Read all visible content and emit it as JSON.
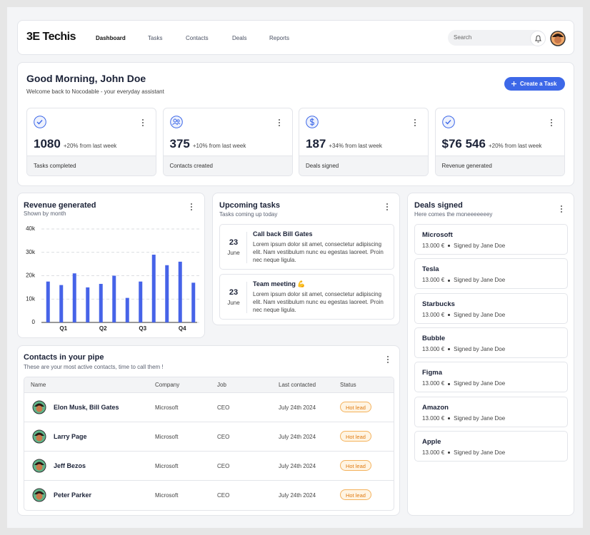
{
  "header": {
    "logo": "3E Techis",
    "nav": [
      "Dashboard",
      "Tasks",
      "Contacts",
      "Deals",
      "Reports"
    ],
    "search": "Search"
  },
  "greeting": {
    "title": "Good Morning, John Doe",
    "subtitle": "Welcome back to Nocodable - your everyday assistant",
    "button": "Create a Task"
  },
  "stats": [
    {
      "value": "1080",
      "change": "+20% from last week",
      "label": "Tasks completed"
    },
    {
      "value": "375",
      "change": "+10% from last week",
      "label": "Contacts created"
    },
    {
      "value": "187",
      "change": "+34% from last week",
      "label": "Deals signed"
    },
    {
      "value": "$76 546",
      "change": "+20% from last week",
      "label": "Revenue generated"
    }
  ],
  "chart_data": {
    "type": "bar",
    "title": "Revenue generated",
    "subtitle": "Shown by month",
    "categories": [
      null,
      "Q1",
      null,
      null,
      "Q2",
      null,
      null,
      "Q3",
      null,
      null,
      "Q4",
      null
    ],
    "values": [
      17500,
      16000,
      21000,
      15000,
      16500,
      20000,
      10500,
      17500,
      29000,
      24500,
      26000,
      17000
    ],
    "color": "#4663e8",
    "ylim": [
      0,
      40000
    ],
    "yticks": [
      {
        "value": 0,
        "label": "0"
      },
      {
        "value": 10000,
        "label": "10k"
      },
      {
        "value": 20000,
        "label": "20k"
      },
      {
        "value": 30000,
        "label": "30k"
      },
      {
        "value": 40000,
        "label": "40k"
      }
    ],
    "grid": true
  },
  "tasks": {
    "title": "Upcoming tasks",
    "subtitle": "Tasks coming up today",
    "items": [
      {
        "day": "23",
        "month": "June",
        "title": "Call back Bill Gates",
        "description": "Lorem ipsum dolor sit amet, consectetur adipiscing elit. Nam vestibulum nunc eu egestas laoreet. Proin nec neque ligula."
      },
      {
        "day": "23",
        "month": "June",
        "title": "Team meeting 💪",
        "description": "Lorem ipsum dolor sit amet, consectetur adipiscing elit. Nam vestibulum nunc eu egestas laoreet. Proin nec neque ligula."
      }
    ]
  },
  "deals": {
    "title": "Deals signed",
    "subtitle": "Here comes the moneeeeeeey",
    "items": [
      {
        "company": "Microsoft",
        "amount": "13.000 €",
        "signed": "Signed by Jane Doe"
      },
      {
        "company": "Tesla",
        "amount": "13.000 €",
        "signed": "Signed by Jane Doe"
      },
      {
        "company": "Starbucks",
        "amount": "13.000 €",
        "signed": "Signed by Jane Doe"
      },
      {
        "company": "Bubble",
        "amount": "13.000 €",
        "signed": "Signed by Jane Doe"
      },
      {
        "company": "Figma",
        "amount": "13.000 €",
        "signed": "Signed by Jane Doe"
      },
      {
        "company": "Amazon",
        "amount": "13.000 €",
        "signed": "Signed by Jane Doe"
      },
      {
        "company": "Apple",
        "amount": "13.000 €",
        "signed": "Signed by Jane Doe"
      }
    ]
  },
  "contacts": {
    "title": "Contacts in your pipe",
    "subtitle": "These are your most active contacts, time to call them !",
    "columns": [
      "Name",
      "Company",
      "Job",
      "Last contacted",
      "Status"
    ],
    "rows": [
      [
        "Elon Musk, Bill Gates",
        "Microsoft",
        "CEO",
        "July 24th 2024",
        "Hot lead"
      ],
      [
        "Larry Page",
        "Microsoft",
        "CEO",
        "July 24th 2024",
        "Hot lead"
      ],
      [
        "Jeff Bezos",
        "Microsoft",
        "CEO",
        "July 24th 2024",
        "Hot lead"
      ],
      [
        "Peter Parker",
        "Microsoft",
        "CEO",
        "July 24th 2024",
        "Hot lead"
      ]
    ]
  }
}
